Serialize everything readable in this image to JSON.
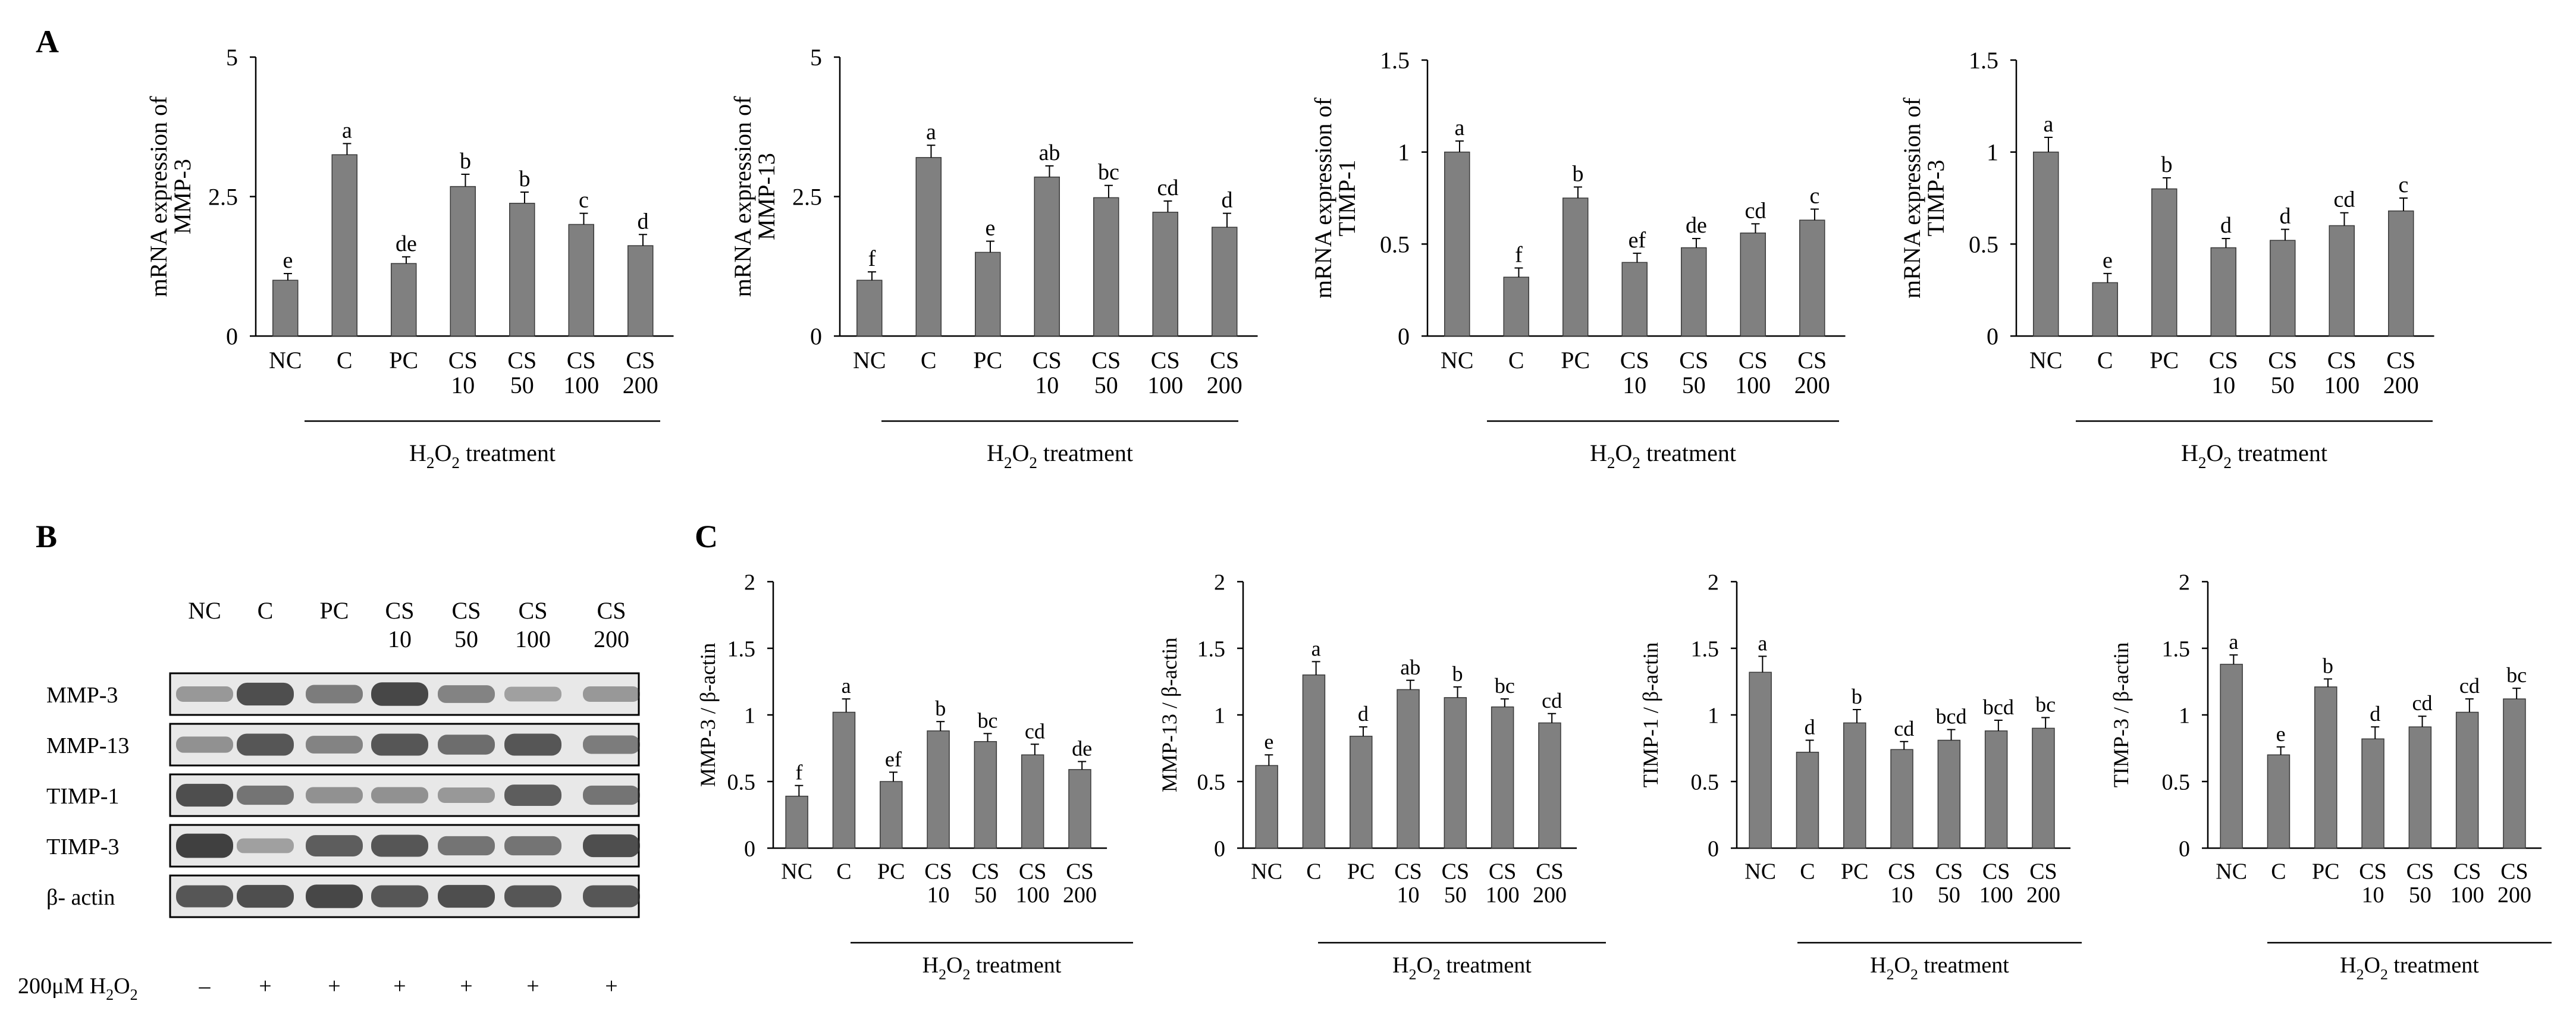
{
  "panels": {
    "a": "A",
    "b": "B",
    "c": "C"
  },
  "colors": {
    "bar": "#808080",
    "axis": "#000000",
    "blot_bg": "#e8e8e8",
    "band": "#2f2f2f"
  },
  "treatment_label": {
    "base": "H",
    "sub1": "2",
    "mid": "O",
    "sub2": "2",
    "tail": " treatment"
  },
  "categories": [
    [
      "NC"
    ],
    [
      "C"
    ],
    [
      "PC"
    ],
    [
      "CS",
      "10"
    ],
    [
      "CS",
      "50"
    ],
    [
      "CS",
      "100"
    ],
    [
      "CS",
      "200"
    ]
  ],
  "chart_data": [
    {
      "id": "a1",
      "type": "bar",
      "ylabel": [
        "mRNA expression of",
        "MMP-3"
      ],
      "ylim": [
        0,
        5
      ],
      "yticks": [
        0,
        2.5,
        5
      ],
      "ytick_labels": [
        "0",
        "2.5",
        "5"
      ],
      "values": [
        1.0,
        3.25,
        1.3,
        2.68,
        2.38,
        2.0,
        1.62
      ],
      "errors": [
        0.12,
        0.2,
        0.12,
        0.22,
        0.2,
        0.2,
        0.2
      ],
      "letters": [
        "e",
        "a",
        "de",
        "b",
        "b",
        "c",
        "d"
      ]
    },
    {
      "id": "a2",
      "type": "bar",
      "ylabel": [
        "mRNA expression of",
        "MMP-13"
      ],
      "ylim": [
        0,
        5
      ],
      "yticks": [
        0,
        2.5,
        5
      ],
      "ytick_labels": [
        "0",
        "2.5",
        "5"
      ],
      "values": [
        1.0,
        3.2,
        1.5,
        2.85,
        2.48,
        2.22,
        1.95
      ],
      "errors": [
        0.15,
        0.22,
        0.2,
        0.2,
        0.22,
        0.2,
        0.25
      ],
      "letters": [
        "f",
        "a",
        "e",
        "ab",
        "bc",
        "cd",
        "d"
      ]
    },
    {
      "id": "a3",
      "type": "bar",
      "ylabel": [
        "mRNA expression of",
        "TIMP-1"
      ],
      "ylim": [
        0,
        1.5
      ],
      "yticks": [
        0,
        0.5,
        1,
        1.5
      ],
      "ytick_labels": [
        "0",
        "0.5",
        "1",
        "1.5"
      ],
      "values": [
        1.0,
        0.32,
        0.75,
        0.4,
        0.48,
        0.56,
        0.63
      ],
      "errors": [
        0.06,
        0.05,
        0.06,
        0.05,
        0.05,
        0.05,
        0.06
      ],
      "letters": [
        "a",
        "f",
        "b",
        "ef",
        "de",
        "cd",
        "c"
      ]
    },
    {
      "id": "a4",
      "type": "bar",
      "ylabel": [
        "mRNA expression of",
        "TIMP-3"
      ],
      "ylim": [
        0,
        1.5
      ],
      "yticks": [
        0,
        0.5,
        1,
        1.5
      ],
      "ytick_labels": [
        "0",
        "0.5",
        "1",
        "1.5"
      ],
      "values": [
        1.0,
        0.29,
        0.8,
        0.48,
        0.52,
        0.6,
        0.68
      ],
      "errors": [
        0.08,
        0.05,
        0.06,
        0.05,
        0.06,
        0.07,
        0.07
      ],
      "letters": [
        "a",
        "e",
        "b",
        "d",
        "d",
        "cd",
        "c"
      ]
    },
    {
      "id": "c1",
      "type": "bar",
      "ylabel": [
        "MMP-3 / β-actin"
      ],
      "ylim": [
        0,
        2
      ],
      "yticks": [
        0,
        0.5,
        1,
        1.5,
        2
      ],
      "ytick_labels": [
        "0",
        "0.5",
        "1",
        "1.5",
        "2"
      ],
      "values": [
        0.39,
        1.02,
        0.5,
        0.88,
        0.8,
        0.7,
        0.59
      ],
      "errors": [
        0.08,
        0.1,
        0.07,
        0.07,
        0.06,
        0.08,
        0.06
      ],
      "letters": [
        "f",
        "a",
        "ef",
        "b",
        "bc",
        "cd",
        "de"
      ]
    },
    {
      "id": "c2",
      "type": "bar",
      "ylabel": [
        "MMP-13 / β-actin"
      ],
      "ylim": [
        0,
        2
      ],
      "yticks": [
        0,
        0.5,
        1,
        1.5,
        2
      ],
      "ytick_labels": [
        "0",
        "0.5",
        "1",
        "1.5",
        "2"
      ],
      "values": [
        0.62,
        1.3,
        0.84,
        1.19,
        1.13,
        1.06,
        0.94
      ],
      "errors": [
        0.08,
        0.1,
        0.07,
        0.07,
        0.08,
        0.06,
        0.07
      ],
      "letters": [
        "e",
        "a",
        "d",
        "ab",
        "b",
        "bc",
        "cd"
      ]
    },
    {
      "id": "c3",
      "type": "bar",
      "ylabel": [
        "TIMP-1 / β-actin"
      ],
      "ylim": [
        0,
        2
      ],
      "yticks": [
        0,
        0.5,
        1,
        1.5,
        2
      ],
      "ytick_labels": [
        "0",
        "0.5",
        "1",
        "1.5",
        "2"
      ],
      "values": [
        1.32,
        0.72,
        0.94,
        0.74,
        0.81,
        0.88,
        0.9
      ],
      "errors": [
        0.12,
        0.09,
        0.1,
        0.06,
        0.08,
        0.08,
        0.08
      ],
      "letters": [
        "a",
        "d",
        "b",
        "cd",
        "bcd",
        "bcd",
        "bc"
      ]
    },
    {
      "id": "c4",
      "type": "bar",
      "ylabel": [
        "TIMP-3 / β-actin"
      ],
      "ylim": [
        0,
        2
      ],
      "yticks": [
        0,
        0.5,
        1,
        1.5,
        2
      ],
      "ytick_labels": [
        "0",
        "0.5",
        "1",
        "1.5",
        "2"
      ],
      "values": [
        1.38,
        0.7,
        1.21,
        0.82,
        0.91,
        1.02,
        1.12
      ],
      "errors": [
        0.07,
        0.06,
        0.06,
        0.09,
        0.08,
        0.1,
        0.08
      ],
      "letters": [
        "a",
        "e",
        "b",
        "d",
        "cd",
        "cd",
        "bc"
      ]
    }
  ],
  "blot": {
    "lanes": [
      [
        "NC"
      ],
      [
        "C"
      ],
      [
        "PC"
      ],
      [
        "CS",
        "10"
      ],
      [
        "CS",
        "50"
      ],
      [
        "CS",
        "100"
      ],
      [
        "CS",
        "200"
      ]
    ],
    "rows": [
      "MMP-3",
      "MMP-13",
      "TIMP-1",
      "TIMP-3",
      "β- actin"
    ],
    "intensity": [
      [
        0.35,
        0.85,
        0.55,
        0.9,
        0.5,
        0.3,
        0.35
      ],
      [
        0.4,
        0.8,
        0.5,
        0.8,
        0.65,
        0.8,
        0.55
      ],
      [
        0.85,
        0.6,
        0.4,
        0.4,
        0.35,
        0.75,
        0.6
      ],
      [
        0.95,
        0.3,
        0.75,
        0.8,
        0.6,
        0.6,
        0.85
      ],
      [
        0.8,
        0.85,
        0.9,
        0.8,
        0.85,
        0.8,
        0.8
      ]
    ],
    "h2o2_label": {
      "base": "200μM H",
      "mid": "O",
      "sub": "2"
    },
    "h2o2_signs": [
      "–",
      "+",
      "+",
      "+",
      "+",
      "+",
      "+"
    ]
  }
}
